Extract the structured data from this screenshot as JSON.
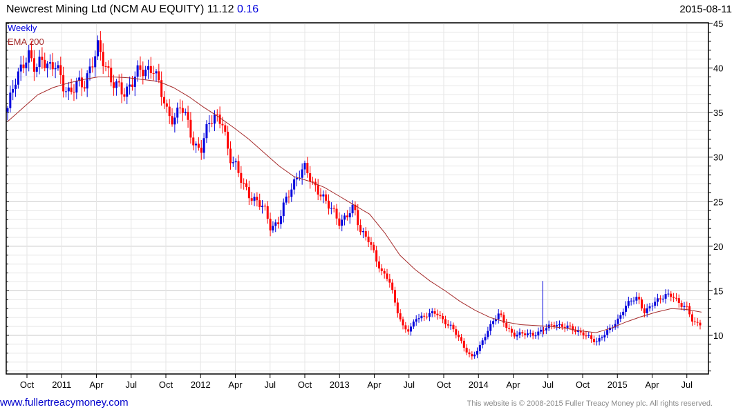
{
  "header": {
    "title": "Newcrest Mining Ltd (NCM AU EQUITY) 11.12",
    "change": "0.16",
    "date": "2015-08-11"
  },
  "footer": {
    "link": "www.fullertreacymoney.com",
    "copyright": "This website is © 2008-2015 Fuller Treacy Money plc. All rights reserved."
  },
  "colors": {
    "up": "#0000dd",
    "down": "#ff0000",
    "ema": "#a52a2a",
    "grid": "#e6e6e6",
    "grid_major": "#c8c8c8"
  },
  "chart_data": {
    "type": "candlestick",
    "title": "Newcrest Mining Ltd (NCM AU EQUITY)",
    "interval_label": "Weekly",
    "legend": [
      "Weekly",
      "EMA 200"
    ],
    "legend_placement": "top-left",
    "period": {
      "start": "2010-08",
      "end": "2015-08-11"
    },
    "ylim": [
      5.7,
      45
    ],
    "y_ticks": [
      10,
      15,
      20,
      25,
      30,
      35,
      40,
      45
    ],
    "x_ticks": [
      "Oct",
      "2011",
      "Apr",
      "Jul",
      "Oct",
      "2012",
      "Apr",
      "Jul",
      "Oct",
      "2013",
      "Apr",
      "Jul",
      "Oct",
      "2014",
      "Apr",
      "Jul",
      "Oct",
      "2015",
      "Apr",
      "Jul"
    ],
    "closes_approx": [
      35.5,
      38.5,
      40,
      41.5,
      40,
      41,
      40,
      40.5,
      38,
      37,
      38.5,
      38,
      40,
      42.5,
      40.5,
      38.5,
      38,
      37,
      38.5,
      40,
      39.5,
      40,
      38,
      35,
      34,
      36,
      34,
      31,
      31,
      34,
      34.5,
      34,
      30,
      29,
      27,
      25.5,
      25,
      24.5,
      22,
      22.5,
      25,
      26.5,
      28,
      29,
      27,
      26,
      25,
      24,
      22.5,
      23.5,
      24.5,
      21.5,
      21,
      19,
      17,
      16.5,
      13.5,
      11,
      10.5,
      12,
      12,
      12.5,
      12.5,
      11.5,
      11,
      10,
      8.5,
      7.5,
      8.5,
      10,
      11.5,
      12.5,
      11,
      10,
      10.2,
      10.2,
      10,
      10.5,
      11,
      11.2,
      11,
      11,
      10.5,
      10.2,
      9.8,
      9.2,
      10,
      10.8,
      11.5,
      13,
      14,
      14.2,
      12.5,
      13.5,
      14,
      14.5,
      14.5,
      13.5,
      13.2,
      11.5,
      11.12
    ],
    "ema200_approx": [
      34,
      35.5,
      37,
      37.8,
      38.3,
      38.7,
      39,
      39,
      38.9,
      38.7,
      38.5,
      37.8,
      36.8,
      35.6,
      34.5,
      33.3,
      32,
      30.5,
      29,
      27.8,
      27.3,
      26.6,
      25.6,
      24.6,
      23.6,
      21.5,
      19,
      17.4,
      16.1,
      15,
      13.8,
      12.8,
      12,
      11.5,
      11.2,
      11.1,
      11,
      10.8,
      10.5,
      10.3,
      10.8,
      11.5,
      12.1,
      12.6,
      13,
      12.9,
      12.6
    ],
    "spike": {
      "position_fraction": 0.764,
      "high": 16.1,
      "low": 9.8
    }
  }
}
